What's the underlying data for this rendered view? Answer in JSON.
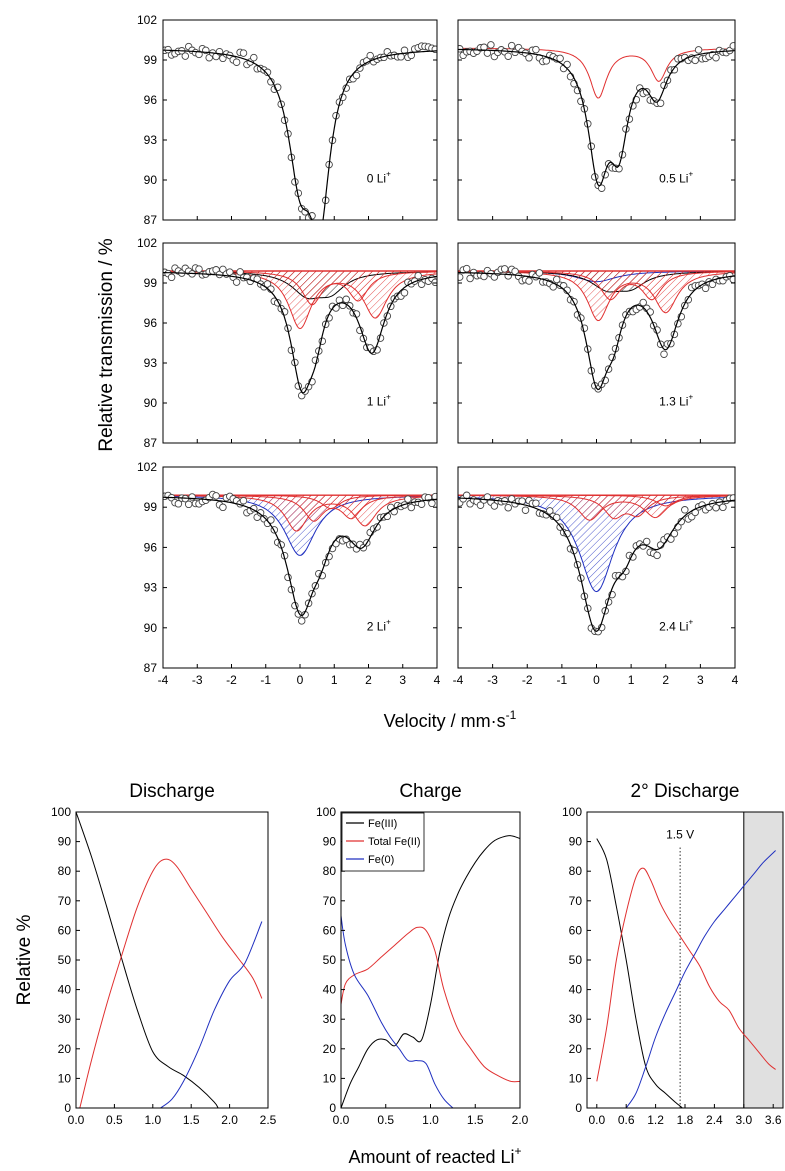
{
  "chart_data": [
    {
      "type": "scatter",
      "group": "mossbauer_spectra",
      "ylabel": "Relative transmission / %",
      "xlabel": "Velocity / mm·s⁻¹",
      "x_ticks": [
        "-4",
        "-3",
        "-2",
        "-1",
        "0",
        "1",
        "2",
        "3",
        "4"
      ],
      "y_ticks": [
        "87",
        "90",
        "93",
        "96",
        "99",
        "102"
      ],
      "xlim": [
        -4,
        4
      ],
      "ylim": [
        87,
        102
      ],
      "panels": [
        {
          "label": "0 Li",
          "sup": "+",
          "components": [
            {
              "color": "#000000",
              "kind": "fit",
              "peaks": [
                {
                  "c": 0.0,
                  "d": 8.5,
                  "w": 0.42
                },
                {
                  "c": 0.58,
                  "d": 11.2,
                  "w": 0.36
                }
              ]
            }
          ]
        },
        {
          "label": "0.5 Li",
          "sup": "+",
          "components": [
            {
              "color": "#e03030",
              "kind": "component",
              "peaks": [
                {
                  "c": 0.05,
                  "d": 3.7,
                  "w": 0.3
                },
                {
                  "c": 1.8,
                  "d": 2.4,
                  "w": 0.28
                }
              ]
            },
            {
              "color": "#000000",
              "kind": "fit",
              "peaks": [
                {
                  "c": 0.05,
                  "d": 8.8,
                  "w": 0.36
                },
                {
                  "c": 0.65,
                  "d": 6.2,
                  "w": 0.32
                },
                {
                  "c": 1.75,
                  "d": 3.2,
                  "w": 0.34
                }
              ]
            }
          ]
        },
        {
          "label": "1 Li",
          "sup": "+",
          "components": [
            {
              "color": "#000000",
              "kind": "hatched",
              "peaks": [
                {
                  "c": 0.2,
                  "d": 1.6,
                  "w": 0.55
                },
                {
                  "c": 0.9,
                  "d": 1.3,
                  "w": 0.5
                }
              ]
            },
            {
              "color": "#e03030",
              "kind": "hatched",
              "peaks": [
                {
                  "c": 0.0,
                  "d": 4.2,
                  "w": 0.4
                },
                {
                  "c": 2.2,
                  "d": 3.4,
                  "w": 0.42
                }
              ]
            },
            {
              "color": "#e03030",
              "kind": "hatched",
              "peaks": [
                {
                  "c": 0.35,
                  "d": 2.4,
                  "w": 0.35
                },
                {
                  "c": 1.7,
                  "d": 2.1,
                  "w": 0.35
                }
              ]
            },
            {
              "color": "#000000",
              "kind": "fit",
              "peaks": [
                {
                  "c": 0.05,
                  "d": 7.8,
                  "w": 0.4
                },
                {
                  "c": 0.45,
                  "d": 2.8,
                  "w": 0.3
                },
                {
                  "c": 2.1,
                  "d": 5.8,
                  "w": 0.45
                }
              ]
            }
          ]
        },
        {
          "label": "1.3 Li",
          "sup": "+",
          "components": [
            {
              "color": "#2030c0",
              "kind": "hatched",
              "peaks": [
                {
                  "c": 0.0,
                  "d": 0.8,
                  "w": 0.7
                }
              ]
            },
            {
              "color": "#000000",
              "kind": "hatched",
              "peaks": [
                {
                  "c": 0.3,
                  "d": 1.2,
                  "w": 0.55
                },
                {
                  "c": 1.0,
                  "d": 1.0,
                  "w": 0.5
                }
              ]
            },
            {
              "color": "#e03030",
              "kind": "hatched",
              "peaks": [
                {
                  "c": 0.05,
                  "d": 3.6,
                  "w": 0.38
                },
                {
                  "c": 2.0,
                  "d": 3.0,
                  "w": 0.4
                }
              ]
            },
            {
              "color": "#e03030",
              "kind": "hatched",
              "peaks": [
                {
                  "c": 0.4,
                  "d": 2.0,
                  "w": 0.35
                },
                {
                  "c": 1.6,
                  "d": 2.0,
                  "w": 0.35
                }
              ]
            },
            {
              "color": "#000000",
              "kind": "fit",
              "peaks": [
                {
                  "c": 0.02,
                  "d": 7.8,
                  "w": 0.4
                },
                {
                  "c": 0.5,
                  "d": 2.8,
                  "w": 0.3
                },
                {
                  "c": 2.0,
                  "d": 5.5,
                  "w": 0.45
                }
              ]
            }
          ]
        },
        {
          "label": "2 Li",
          "sup": "+",
          "components": [
            {
              "color": "#2030c0",
              "kind": "hatched",
              "peaks": [
                {
                  "c": 0.0,
                  "d": 4.5,
                  "w": 0.55
                }
              ]
            },
            {
              "color": "#e03030",
              "kind": "hatched",
              "peaks": [
                {
                  "c": -0.1,
                  "d": 2.6,
                  "w": 0.4
                },
                {
                  "c": 1.9,
                  "d": 2.2,
                  "w": 0.4
                }
              ]
            },
            {
              "color": "#e03030",
              "kind": "hatched",
              "peaks": [
                {
                  "c": 0.4,
                  "d": 1.8,
                  "w": 0.35
                },
                {
                  "c": 1.5,
                  "d": 1.6,
                  "w": 0.35
                }
              ]
            },
            {
              "color": "#e03030",
              "kind": "hatched",
              "peaks": [
                {
                  "c": 0.9,
                  "d": 1.0,
                  "w": 0.35
                }
              ]
            },
            {
              "color": "#000000",
              "kind": "fit",
              "peaks": [
                {
                  "c": 0.02,
                  "d": 8.2,
                  "w": 0.5
                },
                {
                  "c": 0.6,
                  "d": 2.0,
                  "w": 0.35
                },
                {
                  "c": 1.8,
                  "d": 3.2,
                  "w": 0.5
                }
              ]
            }
          ]
        },
        {
          "label": "2.4 Li",
          "sup": "+",
          "components": [
            {
              "color": "#2030c0",
              "kind": "hatched",
              "peaks": [
                {
                  "c": 0.0,
                  "d": 7.2,
                  "w": 0.6
                }
              ]
            },
            {
              "color": "#e03030",
              "kind": "hatched",
              "peaks": [
                {
                  "c": -0.2,
                  "d": 1.8,
                  "w": 0.4
                },
                {
                  "c": 1.7,
                  "d": 1.6,
                  "w": 0.4
                }
              ]
            },
            {
              "color": "#e03030",
              "kind": "hatched",
              "peaks": [
                {
                  "c": 0.5,
                  "d": 1.5,
                  "w": 0.35
                },
                {
                  "c": 1.2,
                  "d": 1.3,
                  "w": 0.35
                }
              ]
            },
            {
              "color": "#e03030",
              "kind": "hatched",
              "peaks": [
                {
                  "c": 2.0,
                  "d": 0.8,
                  "w": 0.35
                }
              ]
            },
            {
              "color": "#000000",
              "kind": "fit",
              "peaks": [
                {
                  "c": -0.02,
                  "d": 9.6,
                  "w": 0.55
                },
                {
                  "c": 0.8,
                  "d": 2.0,
                  "w": 0.35
                },
                {
                  "c": 1.8,
                  "d": 3.0,
                  "w": 0.55
                }
              ]
            }
          ]
        }
      ]
    },
    {
      "type": "line",
      "title": "Discharge",
      "ylabel": "Relative %",
      "xlim": [
        0,
        2.5
      ],
      "ylim": [
        0,
        100
      ],
      "x_ticks": [
        "0.0",
        "0.5",
        "1.0",
        "1.5",
        "2.0",
        "2.5"
      ],
      "y_ticks": [
        "0",
        "10",
        "20",
        "30",
        "40",
        "50",
        "60",
        "70",
        "80",
        "90",
        "100"
      ],
      "series": [
        {
          "color": "#000000",
          "x": [
            0,
            0.2,
            0.4,
            0.6,
            0.8,
            1.0,
            1.2,
            1.4,
            1.6,
            1.8,
            1.85
          ],
          "y": [
            100,
            85,
            68,
            50,
            33,
            19,
            14,
            11,
            7,
            2,
            0
          ]
        },
        {
          "color": "#e03030",
          "x": [
            0.05,
            0.2,
            0.4,
            0.6,
            0.8,
            1.0,
            1.15,
            1.3,
            1.5,
            1.7,
            1.9,
            2.1,
            2.3,
            2.42
          ],
          "y": [
            0,
            16,
            35,
            52,
            68,
            80,
            84,
            82,
            74,
            66,
            58,
            51,
            44,
            37
          ]
        },
        {
          "color": "#2030c0",
          "x": [
            1.1,
            1.25,
            1.4,
            1.6,
            1.8,
            2.0,
            2.2,
            2.42
          ],
          "y": [
            0,
            3,
            9,
            20,
            33,
            43,
            49,
            63
          ]
        }
      ]
    },
    {
      "type": "line",
      "title": "Charge",
      "xlim": [
        0,
        2.0
      ],
      "ylim": [
        0,
        100
      ],
      "x_ticks": [
        "0.0",
        "0.5",
        "1.0",
        "1.5",
        "2.0"
      ],
      "y_ticks": [
        "0",
        "10",
        "20",
        "30",
        "40",
        "50",
        "60",
        "70",
        "80",
        "90",
        "100"
      ],
      "legend": "top-left",
      "series": [
        {
          "name": "Fe(III)",
          "color": "#000000",
          "x": [
            0,
            0.1,
            0.2,
            0.3,
            0.4,
            0.5,
            0.6,
            0.7,
            0.8,
            0.9,
            1.0,
            1.1,
            1.2,
            1.3,
            1.4,
            1.5,
            1.6,
            1.7,
            1.8,
            1.9,
            2.0
          ],
          "y": [
            0,
            8,
            14,
            20,
            23,
            23,
            21,
            25,
            24,
            23,
            35,
            52,
            64,
            72,
            78,
            83,
            87,
            90,
            91.5,
            92,
            91
          ]
        },
        {
          "name": "Total Fe(II)",
          "color": "#e03030",
          "x": [
            0,
            0.05,
            0.15,
            0.3,
            0.45,
            0.6,
            0.75,
            0.85,
            0.95,
            1.05,
            1.15,
            1.3,
            1.45,
            1.6,
            1.75,
            1.9,
            2.0
          ],
          "y": [
            35,
            42,
            45,
            47,
            51,
            55,
            59,
            61,
            60,
            53,
            40,
            27,
            20,
            14,
            11,
            9,
            9
          ]
        },
        {
          "name": "Fe(0)",
          "color": "#2030c0",
          "x": [
            0,
            0.05,
            0.15,
            0.3,
            0.45,
            0.55,
            0.65,
            0.75,
            0.85,
            0.95,
            1.05,
            1.15,
            1.25
          ],
          "y": [
            65,
            55,
            45,
            38,
            29,
            24,
            20,
            16,
            16,
            15,
            8,
            3,
            0
          ]
        }
      ]
    },
    {
      "type": "line",
      "title": "2° Discharge",
      "xlim": [
        -0.2,
        3.8
      ],
      "ylim": [
        0,
        100
      ],
      "x_ticks": [
        "0.0",
        "0.6",
        "1.2",
        "1.8",
        "2.4",
        "3.0",
        "3.6"
      ],
      "y_ticks": [
        "0",
        "10",
        "20",
        "30",
        "40",
        "50",
        "60",
        "70",
        "80",
        "90",
        "100"
      ],
      "annotation": "1.5 V",
      "annotation_x": 1.7,
      "shaded_from": 3.0,
      "series": [
        {
          "color": "#000000",
          "x": [
            0,
            0.2,
            0.4,
            0.6,
            0.8,
            1.0,
            1.2,
            1.4,
            1.6,
            1.75
          ],
          "y": [
            91,
            84,
            68,
            50,
            30,
            14,
            8,
            5,
            2,
            0
          ]
        },
        {
          "color": "#e03030",
          "x": [
            0,
            0.2,
            0.4,
            0.6,
            0.8,
            0.95,
            1.1,
            1.3,
            1.5,
            1.7,
            1.9,
            2.1,
            2.3,
            2.5,
            2.7,
            2.9,
            3.1,
            3.3,
            3.5,
            3.65
          ],
          "y": [
            9,
            27,
            50,
            66,
            78,
            81,
            77,
            69,
            63,
            58,
            53,
            48,
            41,
            36,
            33,
            27,
            23,
            19,
            15,
            13
          ]
        },
        {
          "color": "#2030c0",
          "x": [
            0.6,
            0.8,
            1.0,
            1.2,
            1.4,
            1.6,
            1.8,
            2.0,
            2.2,
            2.4,
            2.6,
            2.8,
            3.0,
            3.2,
            3.4,
            3.65
          ],
          "y": [
            0,
            5,
            14,
            24,
            32,
            39,
            46,
            52,
            58,
            63,
            67,
            71,
            75,
            79,
            83,
            87
          ]
        }
      ]
    }
  ],
  "labels": {
    "top_ylabel": "Relative transmission / %",
    "top_xlabel_main": "Velocity / mm·s",
    "top_xlabel_sup": "-1",
    "bottom_ylabel": "Relative %",
    "bottom_xlabel_main": "Amount of reacted Li",
    "bottom_xlabel_sup": "+"
  }
}
